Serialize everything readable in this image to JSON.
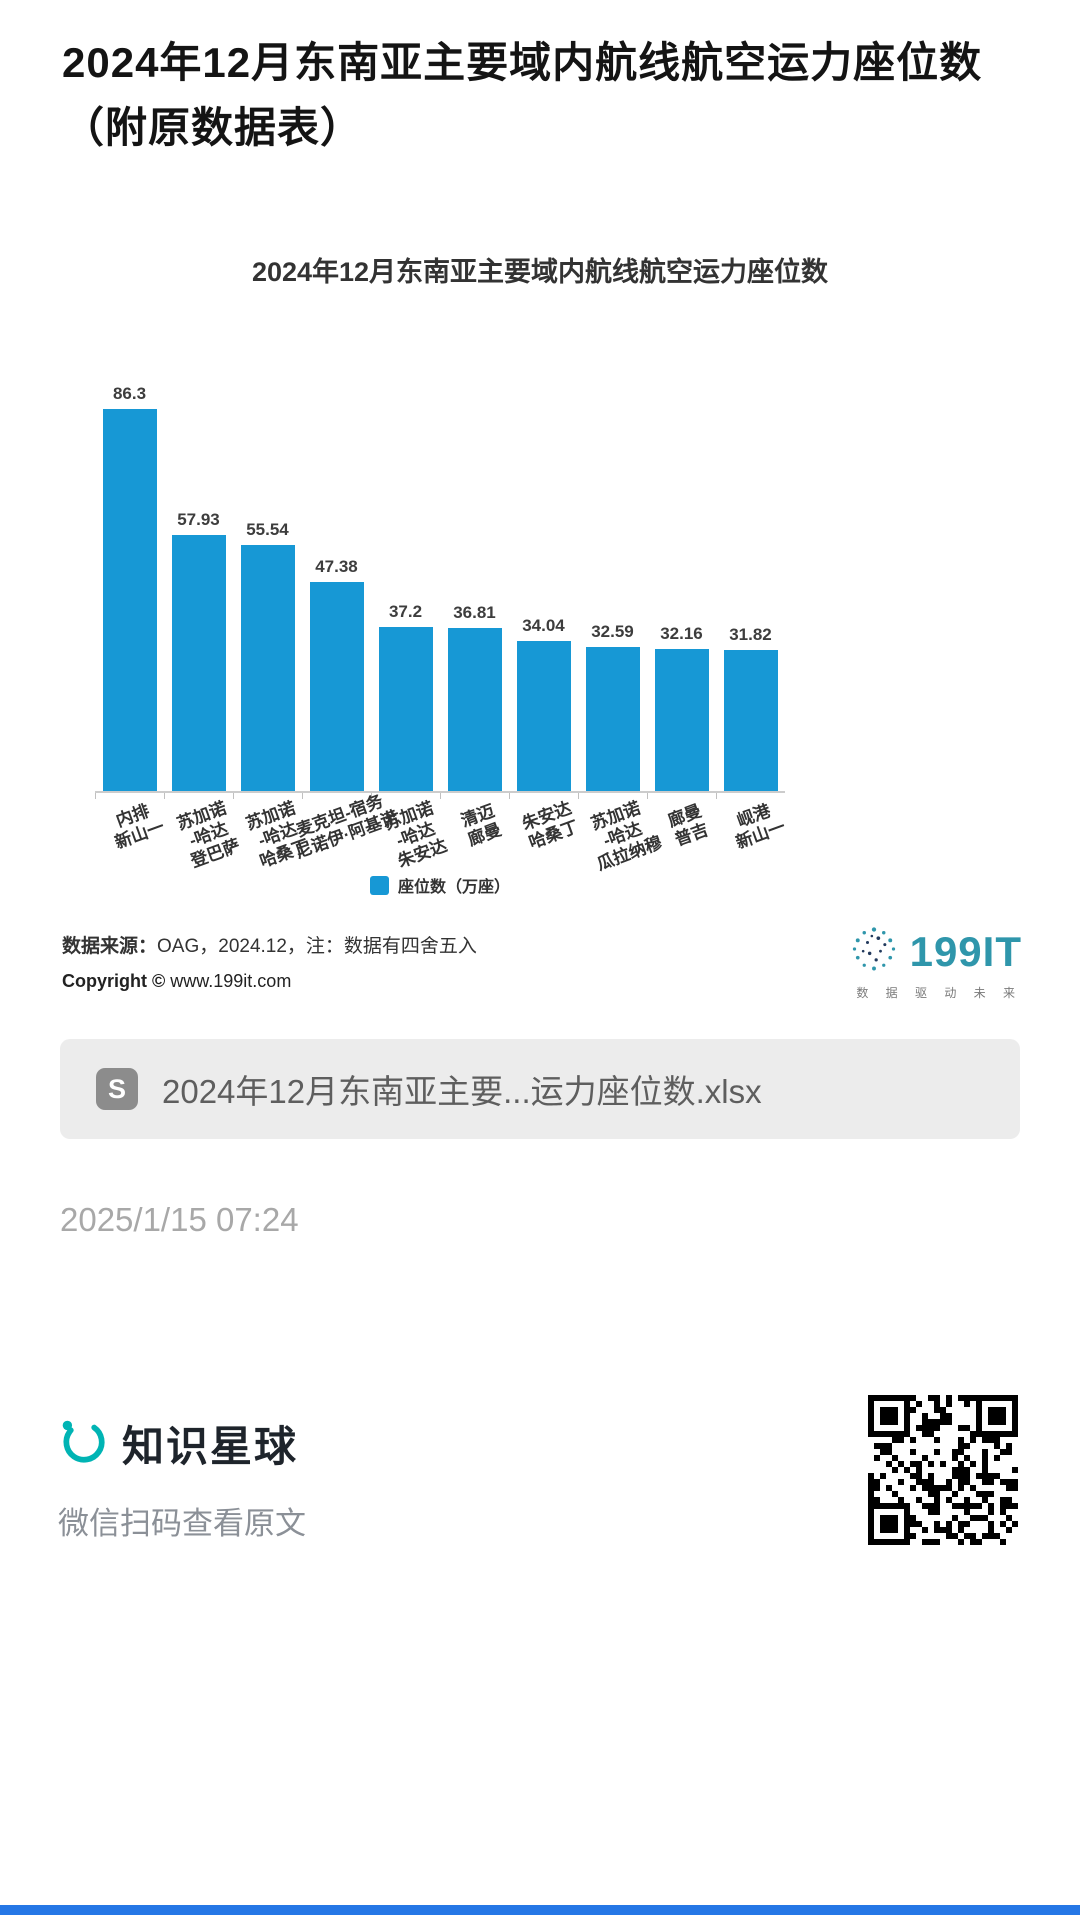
{
  "page": {
    "title": "2024年12月东南亚主要域内航线航空运力座位数（附原数据表）",
    "timestamp": "2025/1/15 07:24"
  },
  "chart_data": {
    "type": "bar",
    "title": "2024年12月东南亚主要域内航线航空运力座位数",
    "categories": [
      [
        "内排",
        "新山一"
      ],
      [
        "苏加诺",
        "-哈达",
        "登巴萨"
      ],
      [
        "苏加诺",
        "-哈达",
        "哈桑丁"
      ],
      [
        "麦克坦-宿务",
        "尼诺伊·阿基诺"
      ],
      [
        "苏加诺",
        "-哈达",
        "朱安达"
      ],
      [
        "清迈",
        "廊曼"
      ],
      [
        "朱安达",
        "哈桑丁"
      ],
      [
        "苏加诺",
        "-哈达",
        "瓜拉纳穆"
      ],
      [
        "廊曼",
        "普吉"
      ],
      [
        "岘港",
        "新山一"
      ]
    ],
    "values": [
      86.3,
      57.93,
      55.54,
      47.38,
      37.2,
      36.81,
      34.04,
      32.59,
      32.16,
      31.82
    ],
    "legend": "座位数（万座）",
    "bar_color": "#1798d5",
    "ylim": [
      0,
      95
    ],
    "grid": false,
    "legend_position": "bottom",
    "xlabel": "",
    "ylabel": ""
  },
  "source": {
    "label": "数据来源：",
    "text": "OAG，2024.12，注：数据有四舍五入",
    "copyright_label": "Copyright ©",
    "copyright_text": " www.199it.com"
  },
  "logo199": {
    "text": "199IT",
    "tagline": "数 据 驱 动 未 来"
  },
  "attachment": {
    "icon_letter": "S",
    "filename": "2024年12月东南亚主要...运力座位数.xlsx"
  },
  "footer": {
    "brand": "知识星球",
    "caption": "微信扫码查看原文"
  }
}
